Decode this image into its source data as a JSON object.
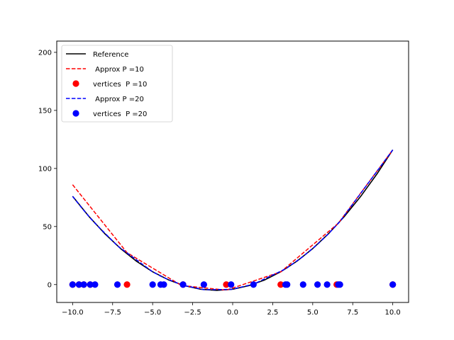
{
  "chart_data": {
    "type": "line",
    "title": "",
    "xlabel": "",
    "ylabel": "",
    "xlim": [
      -10.99,
      10.99
    ],
    "ylim": [
      -15.4,
      209.7
    ],
    "grid": false,
    "legend_position": "top-left",
    "x_ticks": [
      -10.0,
      -7.5,
      -5.0,
      -2.5,
      0.0,
      2.5,
      5.0,
      7.5,
      10.0
    ],
    "x_tick_labels": [
      "−10.0",
      "−7.5",
      "−5.0",
      "−2.5",
      "0.0",
      "2.5",
      "5.0",
      "7.5",
      "10.0"
    ],
    "y_ticks": [
      0,
      50,
      100,
      150,
      200
    ],
    "y_tick_labels": [
      "0",
      "50",
      "100",
      "150",
      "200"
    ],
    "reference_function": "x^2 + 2x - 4",
    "series": [
      {
        "name": "Reference",
        "kind": "line",
        "style": "solid",
        "color": "#000000",
        "x": [
          -10,
          -9,
          -8,
          -7,
          -6,
          -5,
          -4,
          -3,
          -2,
          -1,
          0,
          1,
          2,
          3,
          4,
          5,
          6,
          7,
          8,
          9,
          10
        ],
        "y": [
          76,
          59,
          44,
          31,
          20,
          11,
          4,
          -1,
          -4,
          -5,
          -4,
          -1,
          4,
          11,
          20,
          31,
          44,
          59,
          76,
          95,
          116
        ]
      },
      {
        "name": " Approx P =10",
        "kind": "line",
        "style": "dashed",
        "color": "#ff0000",
        "x": [
          -10.0,
          -6.6,
          -3.2,
          -0.4,
          3.0,
          6.6,
          10.0
        ],
        "y": [
          86.0,
          27.5,
          -0.8,
          -4.8,
          10.9,
          52.8,
          116.0
        ]
      },
      {
        "name": "vertices  P =10",
        "kind": "scatter",
        "color": "#ff0000",
        "x": [
          -10.0,
          -9.6,
          -9.3,
          -8.9,
          -6.6,
          -3.1,
          -0.4,
          3.0,
          6.5,
          10.0
        ],
        "y": [
          0,
          0,
          0,
          0,
          0,
          0,
          0,
          0,
          0,
          0
        ]
      },
      {
        "name": " Approx P =20",
        "kind": "line",
        "style": "dashed",
        "color": "#0000ff",
        "x": [
          -10.0,
          -9.6,
          -9.3,
          -8.9,
          -8.6,
          -7.2,
          -5.0,
          -4.5,
          -4.3,
          -3.1,
          -1.8,
          -0.1,
          1.3,
          3.3,
          3.4,
          4.4,
          5.3,
          5.9,
          6.6,
          6.7,
          10.0
        ],
        "y": [
          76.0,
          69.0,
          63.9,
          57.4,
          52.8,
          33.4,
          11.0,
          7.3,
          5.9,
          -0.6,
          -4.4,
          -4.2,
          0.3,
          13.5,
          14.4,
          24.2,
          34.7,
          42.6,
          52.8,
          54.3,
          116.0
        ]
      },
      {
        "name": "vertices  P =20",
        "kind": "scatter",
        "color": "#0000ff",
        "x": [
          -10.0,
          -9.6,
          -9.3,
          -8.9,
          -8.6,
          -7.2,
          -5.0,
          -4.5,
          -4.3,
          -3.1,
          -1.8,
          -0.1,
          1.3,
          3.3,
          3.4,
          4.4,
          5.3,
          5.9,
          6.6,
          6.7,
          10.0
        ],
        "y": [
          0,
          0,
          0,
          0,
          0,
          0,
          0,
          0,
          0,
          0,
          0,
          0,
          0,
          0,
          0,
          0,
          0,
          0,
          0,
          0,
          0
        ]
      }
    ]
  }
}
